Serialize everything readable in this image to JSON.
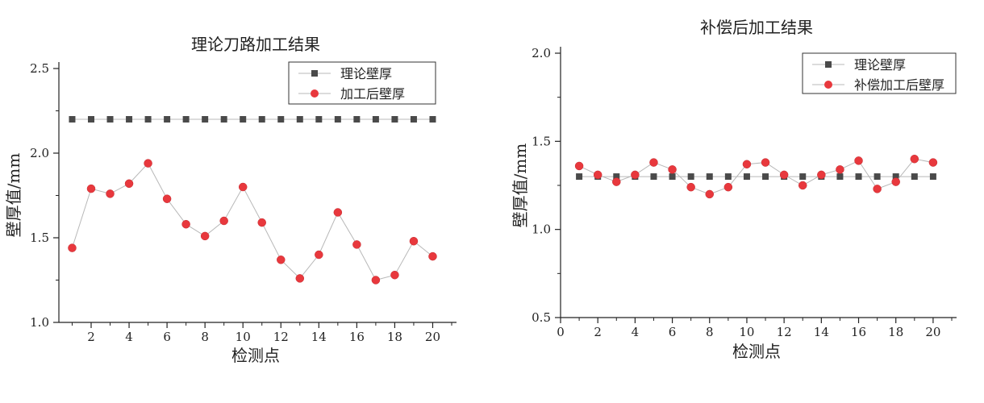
{
  "colors": {
    "theory": "#4a4a4a",
    "measured": "#e8383d",
    "axis": "#222222",
    "line": "#b8b8b8"
  },
  "chart_data": [
    {
      "type": "line",
      "title": "理论刀路加工结果",
      "xlabel": "检测点",
      "ylabel": "壁厚值/mm",
      "xlim": [
        0.3,
        21.0
      ],
      "ylim": [
        1.0,
        2.5
      ],
      "x_ticks": [
        2,
        4,
        6,
        8,
        10,
        12,
        14,
        16,
        18,
        20
      ],
      "y_ticks": [
        "1.0",
        "1.5",
        "2.0",
        "2.5"
      ],
      "legend_position": "top-right",
      "x": [
        1,
        2,
        3,
        4,
        5,
        6,
        7,
        8,
        9,
        10,
        11,
        12,
        13,
        14,
        15,
        16,
        17,
        18,
        19,
        20
      ],
      "series": [
        {
          "name": "理论壁厚",
          "marker": "square",
          "color": "#4a4a4a",
          "values": [
            2.2,
            2.2,
            2.2,
            2.2,
            2.2,
            2.2,
            2.2,
            2.2,
            2.2,
            2.2,
            2.2,
            2.2,
            2.2,
            2.2,
            2.2,
            2.2,
            2.2,
            2.2,
            2.2,
            2.2
          ]
        },
        {
          "name": "加工后壁厚",
          "marker": "circle",
          "color": "#e8383d",
          "values": [
            1.44,
            1.79,
            1.76,
            1.82,
            1.94,
            1.73,
            1.58,
            1.51,
            1.6,
            1.8,
            1.59,
            1.37,
            1.26,
            1.4,
            1.65,
            1.46,
            1.25,
            1.28,
            1.48,
            1.39
          ]
        }
      ]
    },
    {
      "type": "line",
      "title": "补偿后加工结果",
      "xlabel": "检测点",
      "ylabel": "壁厚值/mm",
      "xlim": [
        0,
        21.0
      ],
      "ylim": [
        0.5,
        2.0
      ],
      "x_ticks": [
        0,
        2,
        4,
        6,
        8,
        10,
        12,
        14,
        16,
        18,
        20
      ],
      "y_ticks": [
        "0.5",
        "1.0",
        "1.5",
        "2.0"
      ],
      "legend_position": "top-right",
      "x": [
        1,
        2,
        3,
        4,
        5,
        6,
        7,
        8,
        9,
        10,
        11,
        12,
        13,
        14,
        15,
        16,
        17,
        18,
        19,
        20
      ],
      "series": [
        {
          "name": "理论壁厚",
          "marker": "square",
          "color": "#4a4a4a",
          "values": [
            1.3,
            1.3,
            1.3,
            1.3,
            1.3,
            1.3,
            1.3,
            1.3,
            1.3,
            1.3,
            1.3,
            1.3,
            1.3,
            1.3,
            1.3,
            1.3,
            1.3,
            1.3,
            1.3,
            1.3
          ]
        },
        {
          "name": "补偿加工后壁厚",
          "marker": "circle",
          "color": "#e8383d",
          "values": [
            1.36,
            1.31,
            1.27,
            1.31,
            1.38,
            1.34,
            1.24,
            1.2,
            1.24,
            1.37,
            1.38,
            1.31,
            1.25,
            1.31,
            1.34,
            1.39,
            1.23,
            1.27,
            1.4,
            1.38
          ]
        }
      ]
    }
  ]
}
